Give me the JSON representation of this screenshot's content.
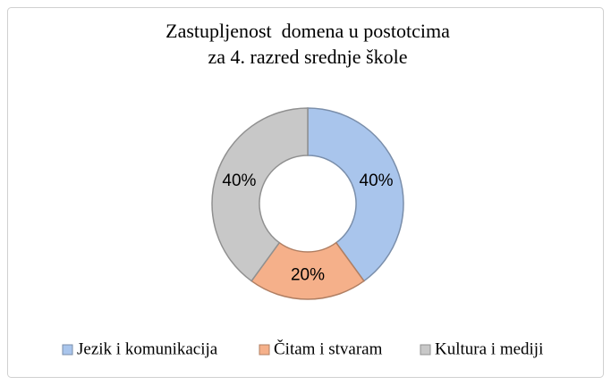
{
  "chart_data": {
    "type": "donut",
    "title": [
      "Zastupljenost  domena u postotcima",
      "za 4. razred srednje škole"
    ],
    "categories": [
      "Jezik i komunikacija",
      "Čitam i stvaram",
      "Kultura i mediji"
    ],
    "values": [
      40,
      20,
      40
    ],
    "value_labels": [
      "40%",
      "20%",
      "40%"
    ],
    "colors": [
      "#a9c5ec",
      "#f5b08a",
      "#c8c8c8"
    ],
    "legend": "bottom"
  }
}
